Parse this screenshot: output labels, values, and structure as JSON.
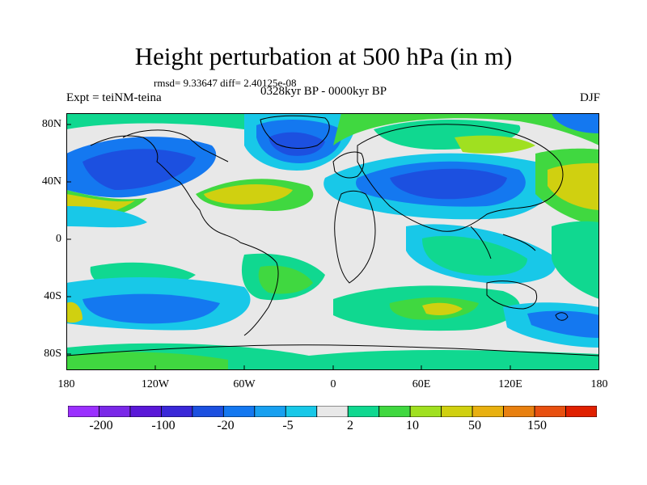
{
  "title": "Height perturbation at 500 hPa (in m)",
  "stats": "rmsd= 9.33647 diff= 2.40125e-08",
  "expt": "Expt = teiNM-teina",
  "period": "0328kyr BP - 0000kyr BP",
  "season": "DJF",
  "lat_labels": [
    "80N",
    "40N",
    "0",
    "40S",
    "80S"
  ],
  "lon_labels": [
    "180",
    "120W",
    "60W",
    "0",
    "60E",
    "120E",
    "180"
  ],
  "colorbar": {
    "colors": [
      "#9b30ff",
      "#7a28e8",
      "#5a18d8",
      "#3a28d8",
      "#1c50e0",
      "#1478f0",
      "#18a0f0",
      "#18c8e8",
      "#e8e8e8",
      "#10d890",
      "#40d840",
      "#a0e020",
      "#d0d010",
      "#e8b010",
      "#e88010",
      "#e85010",
      "#e02000"
    ],
    "labels": [
      "-200",
      "-100",
      "-20",
      "-5",
      "2",
      "10",
      "50",
      "150"
    ]
  },
  "field_colors": {
    "background": "#e8e8e8",
    "neg_weak": "#18c8e8",
    "neg_mid": "#1478f0",
    "neg_strong": "#1c50e0",
    "pos_weak": "#10d890",
    "pos_mid": "#40d840",
    "pos_strong": "#a0e020",
    "pos_high": "#d0d010"
  }
}
